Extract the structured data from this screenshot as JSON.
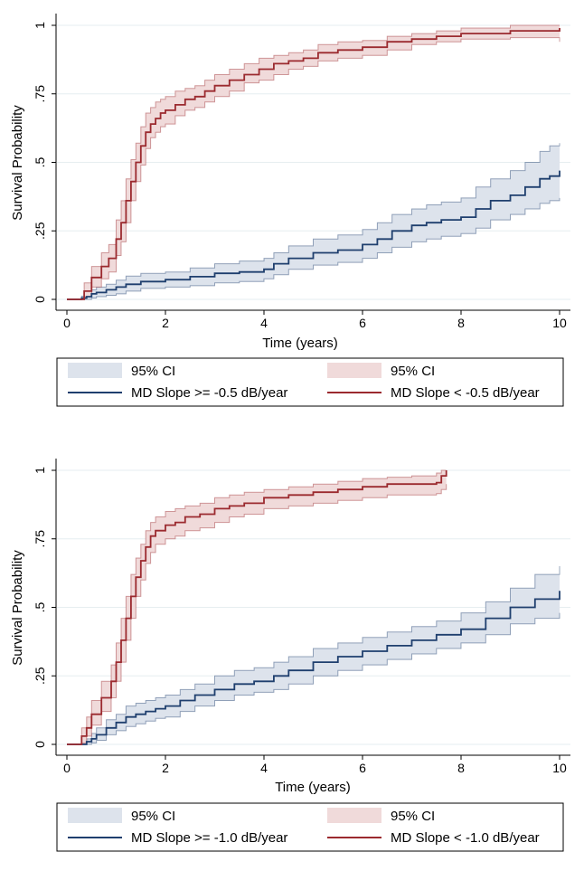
{
  "chart_data": [
    {
      "type": "line",
      "subtype": "kaplan-meier",
      "title": "",
      "xlabel": "Time (years)",
      "ylabel": "Survival Probability",
      "xlim": [
        0,
        10
      ],
      "ylim": [
        0,
        1
      ],
      "x_ticks": [
        0,
        2,
        4,
        6,
        8,
        10
      ],
      "x_tick_labels": [
        "0",
        "2",
        "4",
        "6",
        "8",
        "10"
      ],
      "y_ticks": [
        0,
        0.25,
        0.5,
        0.75,
        1
      ],
      "y_tick_labels": [
        "0",
        ".25",
        ".5",
        ".75",
        "1"
      ],
      "grid": true,
      "legend": {
        "ci_label_1": "95% CI",
        "ci_label_2": "95% CI",
        "series_label_1": "MD Slope >= -0.5 dB/year",
        "series_label_2": "MD Slope < -0.5 dB/year"
      },
      "series": [
        {
          "name": "MD Slope >= -0.5 dB/year",
          "color": "#1f3f6e",
          "ci_color": "#dde3ec",
          "x": [
            0,
            0.2,
            0.3,
            0.4,
            0.5,
            0.6,
            0.8,
            1,
            1.2,
            1.5,
            2,
            2.5,
            3,
            3.5,
            4,
            4.2,
            4.5,
            5,
            5.5,
            6,
            6.3,
            6.6,
            7,
            7.3,
            7.6,
            8,
            8.3,
            8.6,
            9,
            9.3,
            9.6,
            9.8,
            10
          ],
          "y": [
            0,
            0,
            0.005,
            0.01,
            0.02,
            0.025,
            0.035,
            0.045,
            0.055,
            0.065,
            0.072,
            0.083,
            0.095,
            0.1,
            0.11,
            0.13,
            0.15,
            0.17,
            0.18,
            0.2,
            0.22,
            0.25,
            0.27,
            0.28,
            0.29,
            0.3,
            0.33,
            0.36,
            0.38,
            0.41,
            0.44,
            0.45,
            0.47
          ],
          "lower": [
            0,
            0,
            0,
            0,
            0.005,
            0.01,
            0.015,
            0.02,
            0.03,
            0.04,
            0.045,
            0.05,
            0.06,
            0.065,
            0.075,
            0.09,
            0.11,
            0.125,
            0.135,
            0.15,
            0.17,
            0.19,
            0.21,
            0.22,
            0.23,
            0.24,
            0.26,
            0.29,
            0.31,
            0.33,
            0.35,
            0.36,
            0.37
          ],
          "upper": [
            0,
            0,
            0.012,
            0.02,
            0.035,
            0.045,
            0.055,
            0.07,
            0.085,
            0.095,
            0.1,
            0.115,
            0.13,
            0.14,
            0.15,
            0.17,
            0.195,
            0.22,
            0.235,
            0.255,
            0.28,
            0.31,
            0.33,
            0.345,
            0.355,
            0.37,
            0.41,
            0.44,
            0.47,
            0.5,
            0.54,
            0.56,
            0.57
          ]
        },
        {
          "name": "MD Slope < -0.5 dB/year",
          "color": "#9b2a2f",
          "ci_color": "#f0dada",
          "x": [
            0,
            0.2,
            0.35,
            0.5,
            0.7,
            0.85,
            1,
            1.1,
            1.2,
            1.3,
            1.4,
            1.5,
            1.6,
            1.7,
            1.8,
            1.9,
            2,
            2.2,
            2.4,
            2.6,
            2.8,
            3,
            3.3,
            3.6,
            3.9,
            4.2,
            4.5,
            4.8,
            5.1,
            5.5,
            6,
            6.5,
            7,
            7.5,
            8,
            8.5,
            9,
            9.5,
            10
          ],
          "y": [
            0,
            0,
            0.03,
            0.08,
            0.12,
            0.15,
            0.22,
            0.28,
            0.36,
            0.43,
            0.5,
            0.56,
            0.61,
            0.64,
            0.66,
            0.68,
            0.69,
            0.71,
            0.73,
            0.74,
            0.76,
            0.78,
            0.8,
            0.82,
            0.84,
            0.86,
            0.87,
            0.88,
            0.9,
            0.91,
            0.92,
            0.94,
            0.95,
            0.96,
            0.97,
            0.97,
            0.98,
            0.98,
            0.99
          ],
          "lower": [
            0,
            0,
            0.01,
            0.045,
            0.075,
            0.1,
            0.16,
            0.21,
            0.28,
            0.36,
            0.43,
            0.49,
            0.55,
            0.59,
            0.61,
            0.63,
            0.64,
            0.67,
            0.69,
            0.7,
            0.72,
            0.74,
            0.76,
            0.79,
            0.8,
            0.82,
            0.84,
            0.85,
            0.87,
            0.88,
            0.89,
            0.91,
            0.93,
            0.94,
            0.95,
            0.95,
            0.955,
            0.955,
            0.94
          ],
          "upper": [
            0,
            0,
            0.06,
            0.12,
            0.17,
            0.2,
            0.29,
            0.36,
            0.44,
            0.51,
            0.57,
            0.63,
            0.68,
            0.7,
            0.72,
            0.73,
            0.74,
            0.76,
            0.77,
            0.78,
            0.8,
            0.82,
            0.84,
            0.86,
            0.88,
            0.89,
            0.9,
            0.91,
            0.93,
            0.94,
            0.945,
            0.96,
            0.97,
            0.98,
            0.99,
            0.99,
            1,
            1,
            1
          ]
        }
      ]
    },
    {
      "type": "line",
      "subtype": "kaplan-meier",
      "title": "",
      "xlabel": "Time (years)",
      "ylabel": "Survival Probability",
      "xlim": [
        0,
        10
      ],
      "ylim": [
        0,
        1
      ],
      "x_ticks": [
        0,
        2,
        4,
        6,
        8,
        10
      ],
      "x_tick_labels": [
        "0",
        "2",
        "4",
        "6",
        "8",
        "10"
      ],
      "y_ticks": [
        0,
        0.25,
        0.5,
        0.75,
        1
      ],
      "y_tick_labels": [
        "0",
        ".25",
        ".5",
        ".75",
        "1"
      ],
      "grid": true,
      "legend": {
        "ci_label_1": "95% CI",
        "ci_label_2": "95% CI",
        "series_label_1": "MD Slope >= -1.0 dB/year",
        "series_label_2": "MD Slope < -1.0 dB/year"
      },
      "series": [
        {
          "name": "MD Slope >= -1.0 dB/year",
          "color": "#1f3f6e",
          "ci_color": "#dde3ec",
          "x": [
            0,
            0.2,
            0.4,
            0.5,
            0.6,
            0.8,
            1,
            1.2,
            1.4,
            1.6,
            1.8,
            2,
            2.3,
            2.6,
            3,
            3.4,
            3.8,
            4.2,
            4.5,
            5,
            5.5,
            6,
            6.5,
            7,
            7.5,
            8,
            8.5,
            9,
            9.5,
            10
          ],
          "y": [
            0,
            0,
            0.01,
            0.02,
            0.035,
            0.06,
            0.08,
            0.1,
            0.11,
            0.12,
            0.13,
            0.14,
            0.16,
            0.18,
            0.2,
            0.22,
            0.23,
            0.25,
            0.27,
            0.3,
            0.32,
            0.34,
            0.36,
            0.38,
            0.4,
            0.42,
            0.46,
            0.5,
            0.53,
            0.56
          ],
          "lower": [
            0,
            0,
            0,
            0.005,
            0.015,
            0.035,
            0.05,
            0.065,
            0.075,
            0.085,
            0.095,
            0.1,
            0.12,
            0.14,
            0.16,
            0.18,
            0.19,
            0.2,
            0.22,
            0.25,
            0.27,
            0.29,
            0.31,
            0.33,
            0.35,
            0.37,
            0.4,
            0.44,
            0.46,
            0.48
          ],
          "upper": [
            0,
            0,
            0.02,
            0.04,
            0.06,
            0.09,
            0.11,
            0.14,
            0.15,
            0.16,
            0.17,
            0.18,
            0.2,
            0.22,
            0.25,
            0.27,
            0.28,
            0.3,
            0.32,
            0.35,
            0.37,
            0.39,
            0.41,
            0.43,
            0.45,
            0.48,
            0.52,
            0.57,
            0.62,
            0.65
          ]
        },
        {
          "name": "MD Slope < -1.0 dB/year",
          "color": "#9b2a2f",
          "ci_color": "#f0dada",
          "x": [
            0,
            0.2,
            0.3,
            0.4,
            0.5,
            0.7,
            0.9,
            1,
            1.1,
            1.2,
            1.3,
            1.4,
            1.5,
            1.6,
            1.7,
            1.8,
            2,
            2.2,
            2.4,
            2.7,
            3,
            3.3,
            3.6,
            4,
            4.5,
            5,
            5.5,
            6,
            6.5,
            7,
            7.5,
            7.6,
            7.7
          ],
          "y": [
            0,
            0,
            0.03,
            0.06,
            0.11,
            0.17,
            0.23,
            0.3,
            0.38,
            0.46,
            0.54,
            0.61,
            0.67,
            0.72,
            0.76,
            0.78,
            0.8,
            0.81,
            0.83,
            0.84,
            0.86,
            0.87,
            0.88,
            0.9,
            0.91,
            0.92,
            0.93,
            0.94,
            0.95,
            0.95,
            0.955,
            0.98,
            1
          ],
          "lower": [
            0,
            0,
            0.005,
            0.03,
            0.07,
            0.12,
            0.17,
            0.23,
            0.3,
            0.38,
            0.46,
            0.54,
            0.6,
            0.66,
            0.7,
            0.73,
            0.75,
            0.76,
            0.78,
            0.79,
            0.81,
            0.83,
            0.84,
            0.86,
            0.87,
            0.88,
            0.89,
            0.9,
            0.91,
            0.91,
            0.915,
            0.93,
            0.95
          ],
          "upper": [
            0,
            0,
            0.06,
            0.1,
            0.16,
            0.23,
            0.29,
            0.37,
            0.46,
            0.54,
            0.62,
            0.68,
            0.73,
            0.78,
            0.81,
            0.83,
            0.85,
            0.86,
            0.87,
            0.88,
            0.9,
            0.91,
            0.92,
            0.93,
            0.94,
            0.95,
            0.96,
            0.97,
            0.975,
            0.98,
            0.99,
            1,
            1
          ]
        }
      ]
    }
  ]
}
